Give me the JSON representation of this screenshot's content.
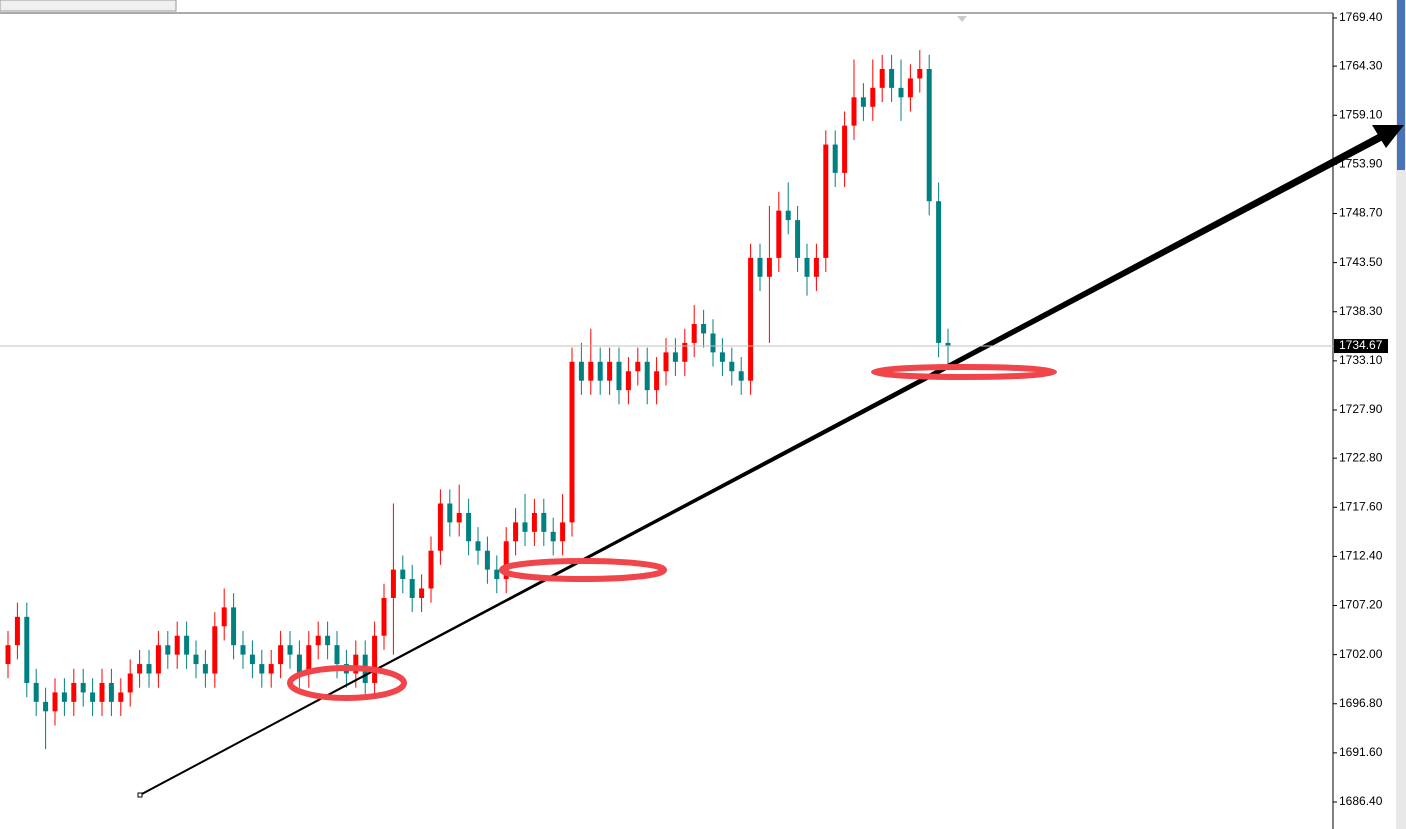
{
  "chart_data": {
    "type": "candlestick",
    "up_color": "#ff0000",
    "down_color": "#008080",
    "last_price": 1734.67,
    "ylim": [
      1683.54,
      1769.82
    ],
    "yticks": [
      {
        "value": 1769.4,
        "label": "1769.40"
      },
      {
        "value": 1764.3,
        "label": "1764.30"
      },
      {
        "value": 1759.1,
        "label": "1759.10"
      },
      {
        "value": 1753.9,
        "label": "1753.90"
      },
      {
        "value": 1748.7,
        "label": "1748.70"
      },
      {
        "value": 1743.5,
        "label": "1743.50"
      },
      {
        "value": 1738.3,
        "label": "1738.30"
      },
      {
        "value": 1733.1,
        "label": "1733.10"
      },
      {
        "value": 1727.9,
        "label": "1727.90"
      },
      {
        "value": 1722.8,
        "label": "1722.80"
      },
      {
        "value": 1717.6,
        "label": "1717.60"
      },
      {
        "value": 1712.4,
        "label": "1712.40"
      },
      {
        "value": 1707.2,
        "label": "1707.20"
      },
      {
        "value": 1702,
        "label": "1702.00"
      },
      {
        "value": 1696.8,
        "label": "1696.80"
      },
      {
        "value": 1691.6,
        "label": "1691.60"
      },
      {
        "value": 1686.4,
        "label": "1686.40"
      }
    ],
    "open": [
      1701,
      1703,
      1706,
      1699,
      1697,
      1696,
      1698,
      1697,
      1699,
      1698,
      1697,
      1699,
      1697,
      1698,
      1700,
      1701,
      1700,
      1703,
      1702,
      1704,
      1702,
      1701,
      1700,
      1705,
      1707,
      1703,
      1702,
      1701,
      1700,
      1701,
      1703,
      1702,
      1700,
      1703,
      1704,
      1703,
      1701,
      1700,
      1702,
      1699,
      1704,
      1708,
      1711,
      1710,
      1708,
      1709,
      1713,
      1718,
      1716,
      1717,
      1714,
      1713,
      1711,
      1710,
      1714,
      1716,
      1715,
      1717,
      1715,
      1714,
      1716,
      1733,
      1731,
      1733,
      1731,
      1733,
      1730,
      1732,
      1733,
      1730,
      1732,
      1734,
      1733,
      1735,
      1737,
      1736,
      1734,
      1733,
      1732,
      1731,
      1744,
      1742,
      1744,
      1749,
      1748,
      1744,
      1742,
      1744,
      1756,
      1753,
      1758,
      1761,
      1760,
      1762,
      1764,
      1762,
      1761,
      1763,
      1764,
      1750,
      1735
    ],
    "high": [
      1704.5,
      1707.5,
      1707.5,
      1700.5,
      1698.5,
      1699.5,
      1699.5,
      1700.5,
      1700.5,
      1699.5,
      1700.5,
      1700.5,
      1699.5,
      1701.5,
      1702.5,
      1702.5,
      1704.5,
      1704.5,
      1705.5,
      1705.5,
      1703.5,
      1702.5,
      1706.5,
      1709,
      1708.5,
      1704.5,
      1703.5,
      1702.5,
      1702.5,
      1704.5,
      1704.5,
      1703.5,
      1704.5,
      1705.5,
      1705.5,
      1704.5,
      1702.5,
      1703.5,
      1703.5,
      1705.5,
      1709.5,
      1718,
      1712.5,
      1711.5,
      1710.5,
      1714.5,
      1719.5,
      1719.5,
      1720,
      1718.5,
      1715.5,
      1714.5,
      1712.5,
      1715.5,
      1717.5,
      1719,
      1718.5,
      1718.5,
      1716.5,
      1719,
      1734.5,
      1735,
      1736.5,
      1734.5,
      1734.5,
      1734.5,
      1733.5,
      1734.5,
      1734.5,
      1733.5,
      1735.5,
      1735.5,
      1736.5,
      1739,
      1738.5,
      1737.5,
      1735.5,
      1734.5,
      1733.5,
      1745.5,
      1745.5,
      1749.5,
      1751,
      1752,
      1749.5,
      1745.5,
      1745.5,
      1757.5,
      1757.5,
      1759.5,
      1765,
      1762.5,
      1765,
      1765.5,
      1765.5,
      1765,
      1764.5,
      1766,
      1765.5,
      1752,
      1736.5
    ],
    "low": [
      1699.5,
      1701.5,
      1697.5,
      1695.5,
      1692,
      1694.5,
      1695.5,
      1695.5,
      1696.5,
      1695.5,
      1695.5,
      1695.5,
      1695.5,
      1696.5,
      1698.5,
      1698.5,
      1698.5,
      1700.5,
      1700.5,
      1700.5,
      1699.5,
      1698.5,
      1698.5,
      1703.5,
      1701.5,
      1700.5,
      1699.5,
      1698.5,
      1698.5,
      1699.5,
      1700.5,
      1698.5,
      1698.5,
      1701.5,
      1701.5,
      1699.5,
      1698.5,
      1698.5,
      1697.5,
      1697.5,
      1702.5,
      1702,
      1708.5,
      1706.5,
      1706.5,
      1707.5,
      1711.5,
      1714.5,
      1714.5,
      1712.5,
      1711.5,
      1709.5,
      1708.5,
      1708.5,
      1712.5,
      1713.5,
      1713.5,
      1713.5,
      1712.5,
      1712.5,
      1714.5,
      1729.5,
      1729.5,
      1729.5,
      1729.5,
      1728.5,
      1728.5,
      1730.5,
      1728.5,
      1728.5,
      1730.5,
      1731.5,
      1731.5,
      1733.5,
      1734.5,
      1732.5,
      1731.5,
      1730.5,
      1729.5,
      1729.5,
      1740.5,
      1735,
      1742.5,
      1746.5,
      1742.5,
      1740,
      1740.5,
      1742.5,
      1751.5,
      1751.5,
      1756.5,
      1758.5,
      1758.5,
      1760.5,
      1760.5,
      1758.5,
      1759.5,
      1761.5,
      1748.5,
      1733.5,
      1732.5
    ],
    "close": [
      1703,
      1706,
      1699,
      1697,
      1696,
      1698,
      1697,
      1699,
      1698,
      1697,
      1699,
      1697,
      1698,
      1700,
      1701,
      1700,
      1703,
      1702,
      1704,
      1702,
      1701,
      1700,
      1705,
      1707,
      1703,
      1702,
      1701,
      1700,
      1701,
      1703,
      1702,
      1700,
      1703,
      1704,
      1703,
      1701,
      1700,
      1702,
      1699,
      1704,
      1708,
      1711,
      1710,
      1708,
      1709,
      1713,
      1718,
      1716,
      1717,
      1714,
      1713,
      1711,
      1710,
      1714,
      1716,
      1715,
      1717,
      1715,
      1714,
      1716,
      1733,
      1731,
      1733,
      1731,
      1733,
      1730,
      1732,
      1733,
      1730,
      1732,
      1734,
      1733,
      1735,
      1737,
      1736,
      1734,
      1733,
      1732,
      1731,
      1744,
      1742,
      1744,
      1749,
      1748,
      1744,
      1742,
      1744,
      1756,
      1753,
      1758,
      1761,
      1760,
      1762,
      1764,
      1762,
      1761,
      1763,
      1764,
      1750,
      1735,
      1734.67
    ]
  }
}
